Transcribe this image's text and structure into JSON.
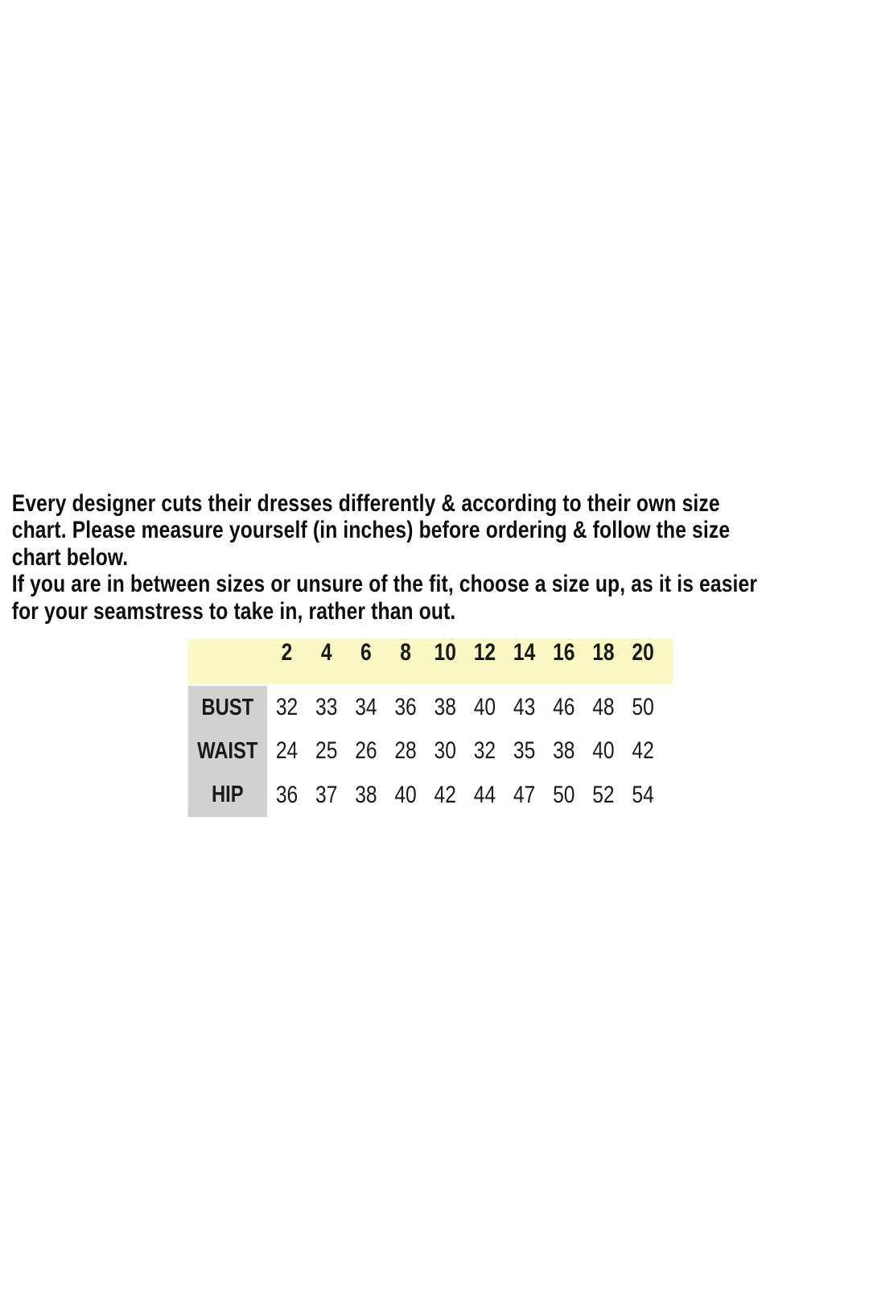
{
  "intro": {
    "lines": [
      "Every designer cuts their dresses differently & according to their own size",
      "chart. Please measure yourself (in inches) before ordering & follow the size",
      "chart below.",
      "If you are in between sizes or unsure of the fit, choose a size up, as it is easier",
      "for your seamstress to take in, rather than out."
    ]
  },
  "size_chart": {
    "sizes": [
      "2",
      "4",
      "6",
      "8",
      "10",
      "12",
      "14",
      "16",
      "18",
      "20"
    ],
    "rows": [
      {
        "label": "BUST",
        "values": [
          "32",
          "33",
          "34",
          "36",
          "38",
          "40",
          "43",
          "46",
          "48",
          "50"
        ]
      },
      {
        "label": "WAIST",
        "values": [
          "24",
          "25",
          "26",
          "28",
          "30",
          "32",
          "35",
          "38",
          "40",
          "42"
        ]
      },
      {
        "label": "HIP",
        "values": [
          "36",
          "37",
          "38",
          "40",
          "42",
          "44",
          "47",
          "50",
          "52",
          "54"
        ]
      }
    ],
    "colors": {
      "header_bg": "#faf8c4",
      "label_bg": "#d1d1d1",
      "text": "#1a1a1a"
    }
  }
}
